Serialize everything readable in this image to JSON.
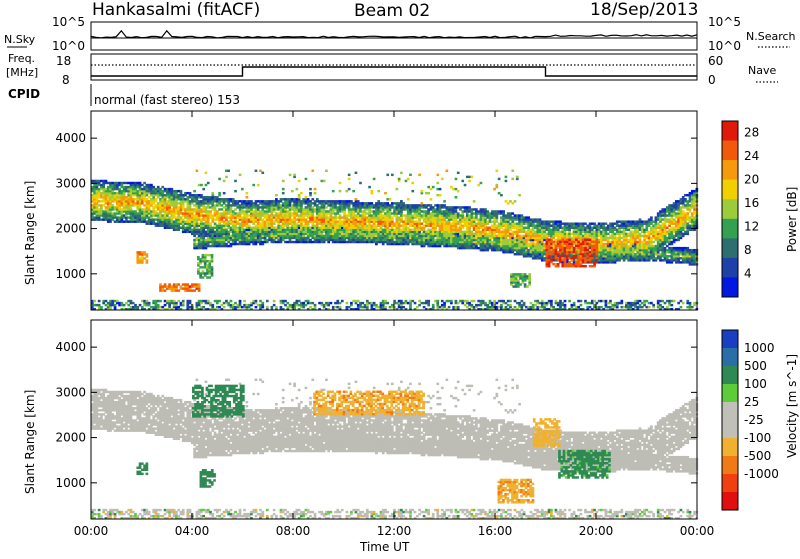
{
  "header": {
    "station": "Hankasalmi (fitACF)",
    "beam": "Beam 02",
    "date": "18/Sep/2013"
  },
  "top_panels": {
    "nsky_label": "N.Sky",
    "nsky_ticks": [
      "10^5",
      "10^0"
    ],
    "nsearch_label": "N.Search",
    "nsearch_ticks": [
      "10^5",
      "10^0"
    ],
    "freq_label": "Freq.",
    "freq_unit": "[MHz]",
    "freq_ticks": [
      "18",
      "8"
    ],
    "nave_label": "Nave",
    "nave_ticks": [
      "60",
      "0"
    ],
    "cpid_label": "CPID",
    "cpid_text": "normal (fast stereo) 153"
  },
  "x_axis": {
    "ticks": [
      "00:00",
      "04:00",
      "08:00",
      "12:00",
      "16:00",
      "20:00",
      "00:00"
    ],
    "label": "Time UT",
    "range_hours": [
      0,
      24
    ]
  },
  "colors": {
    "power": [
      "#0018e0",
      "#1e40a8",
      "#2e6e6e",
      "#34a050",
      "#9ccc3c",
      "#f0d000",
      "#f49a0c",
      "#f05a0a",
      "#e01a0a"
    ],
    "velocity": [
      "#1a3ec2",
      "#2a6ea8",
      "#2e8a52",
      "#5ecb3a",
      "#c0c0b8",
      "#c0c0b8",
      "#f0b030",
      "#f07a18",
      "#f04010",
      "#e01010"
    ],
    "scatter_grey": "#bdbdb5"
  },
  "chart_data": [
    {
      "type": "heatmap",
      "panel": "power",
      "ylabel": "Slant Range [km]",
      "y_ticks": [
        "1000",
        "2000",
        "3000",
        "4000"
      ],
      "ylim": [
        200,
        4600
      ],
      "colorbar_label": "Power [dB]",
      "colorbar_ticks": [
        "4",
        "8",
        "12",
        "16",
        "20",
        "24",
        "28"
      ],
      "colorbar_range": [
        0,
        30
      ],
      "bands": [
        {
          "x": [
            0,
            2,
            4,
            6,
            8,
            10,
            12,
            14,
            16,
            18,
            20,
            22,
            24
          ],
          "center": [
            2600,
            2550,
            2300,
            2150,
            2200,
            2150,
            2100,
            2050,
            1950,
            1700,
            1650,
            1750,
            2450
          ],
          "width": 450,
          "peak": 22
        },
        {
          "x": [
            4,
            6,
            8,
            10,
            12,
            14,
            16,
            18,
            20,
            22,
            24
          ],
          "center": [
            1700,
            1800,
            1850,
            1850,
            1800,
            1750,
            1650,
            1550,
            1500,
            1450,
            1350
          ],
          "width": 180,
          "peak": 14
        }
      ],
      "patches": [
        {
          "t": 2.0,
          "r": 1350,
          "dt": 0.2,
          "dr": 120,
          "v": 22
        },
        {
          "t": 3.5,
          "r": 700,
          "dt": 0.8,
          "dr": 90,
          "v": 24
        },
        {
          "t": 4.5,
          "r": 1150,
          "dt": 0.3,
          "dr": 250,
          "v": 12
        },
        {
          "t": 17.0,
          "r": 850,
          "dt": 0.4,
          "dr": 150,
          "v": 12
        },
        {
          "t": 19.0,
          "r": 1450,
          "dt": 1.0,
          "dr": 300,
          "v": 26
        }
      ]
    },
    {
      "type": "heatmap",
      "panel": "velocity",
      "ylabel": "Slant Range [km]",
      "y_ticks": [
        "1000",
        "2000",
        "3000",
        "4000"
      ],
      "ylim": [
        200,
        4600
      ],
      "colorbar_label": "Velocity [m s^-1]",
      "colorbar_ticks": [
        "1000",
        "500",
        "100",
        "25",
        "-25",
        "-100",
        "-500",
        "-1000"
      ],
      "patches": [
        {
          "t": 2.0,
          "r": 1300,
          "dt": 0.2,
          "dr": 120,
          "v": 300
        },
        {
          "t": 4.6,
          "r": 1100,
          "dt": 0.3,
          "dr": 200,
          "v": 200
        },
        {
          "t": 5.0,
          "r": 2800,
          "dt": 1.0,
          "dr": 350,
          "v": 200
        },
        {
          "t": 11.0,
          "r": 2750,
          "dt": 2.2,
          "dr": 250,
          "v": -400
        },
        {
          "t": 16.8,
          "r": 800,
          "dt": 0.7,
          "dr": 250,
          "v": -400
        },
        {
          "t": 19.5,
          "r": 1400,
          "dt": 1.0,
          "dr": 300,
          "v": 150
        },
        {
          "t": 18.0,
          "r": 2100,
          "dt": 0.5,
          "dr": 300,
          "v": -300
        }
      ]
    }
  ]
}
